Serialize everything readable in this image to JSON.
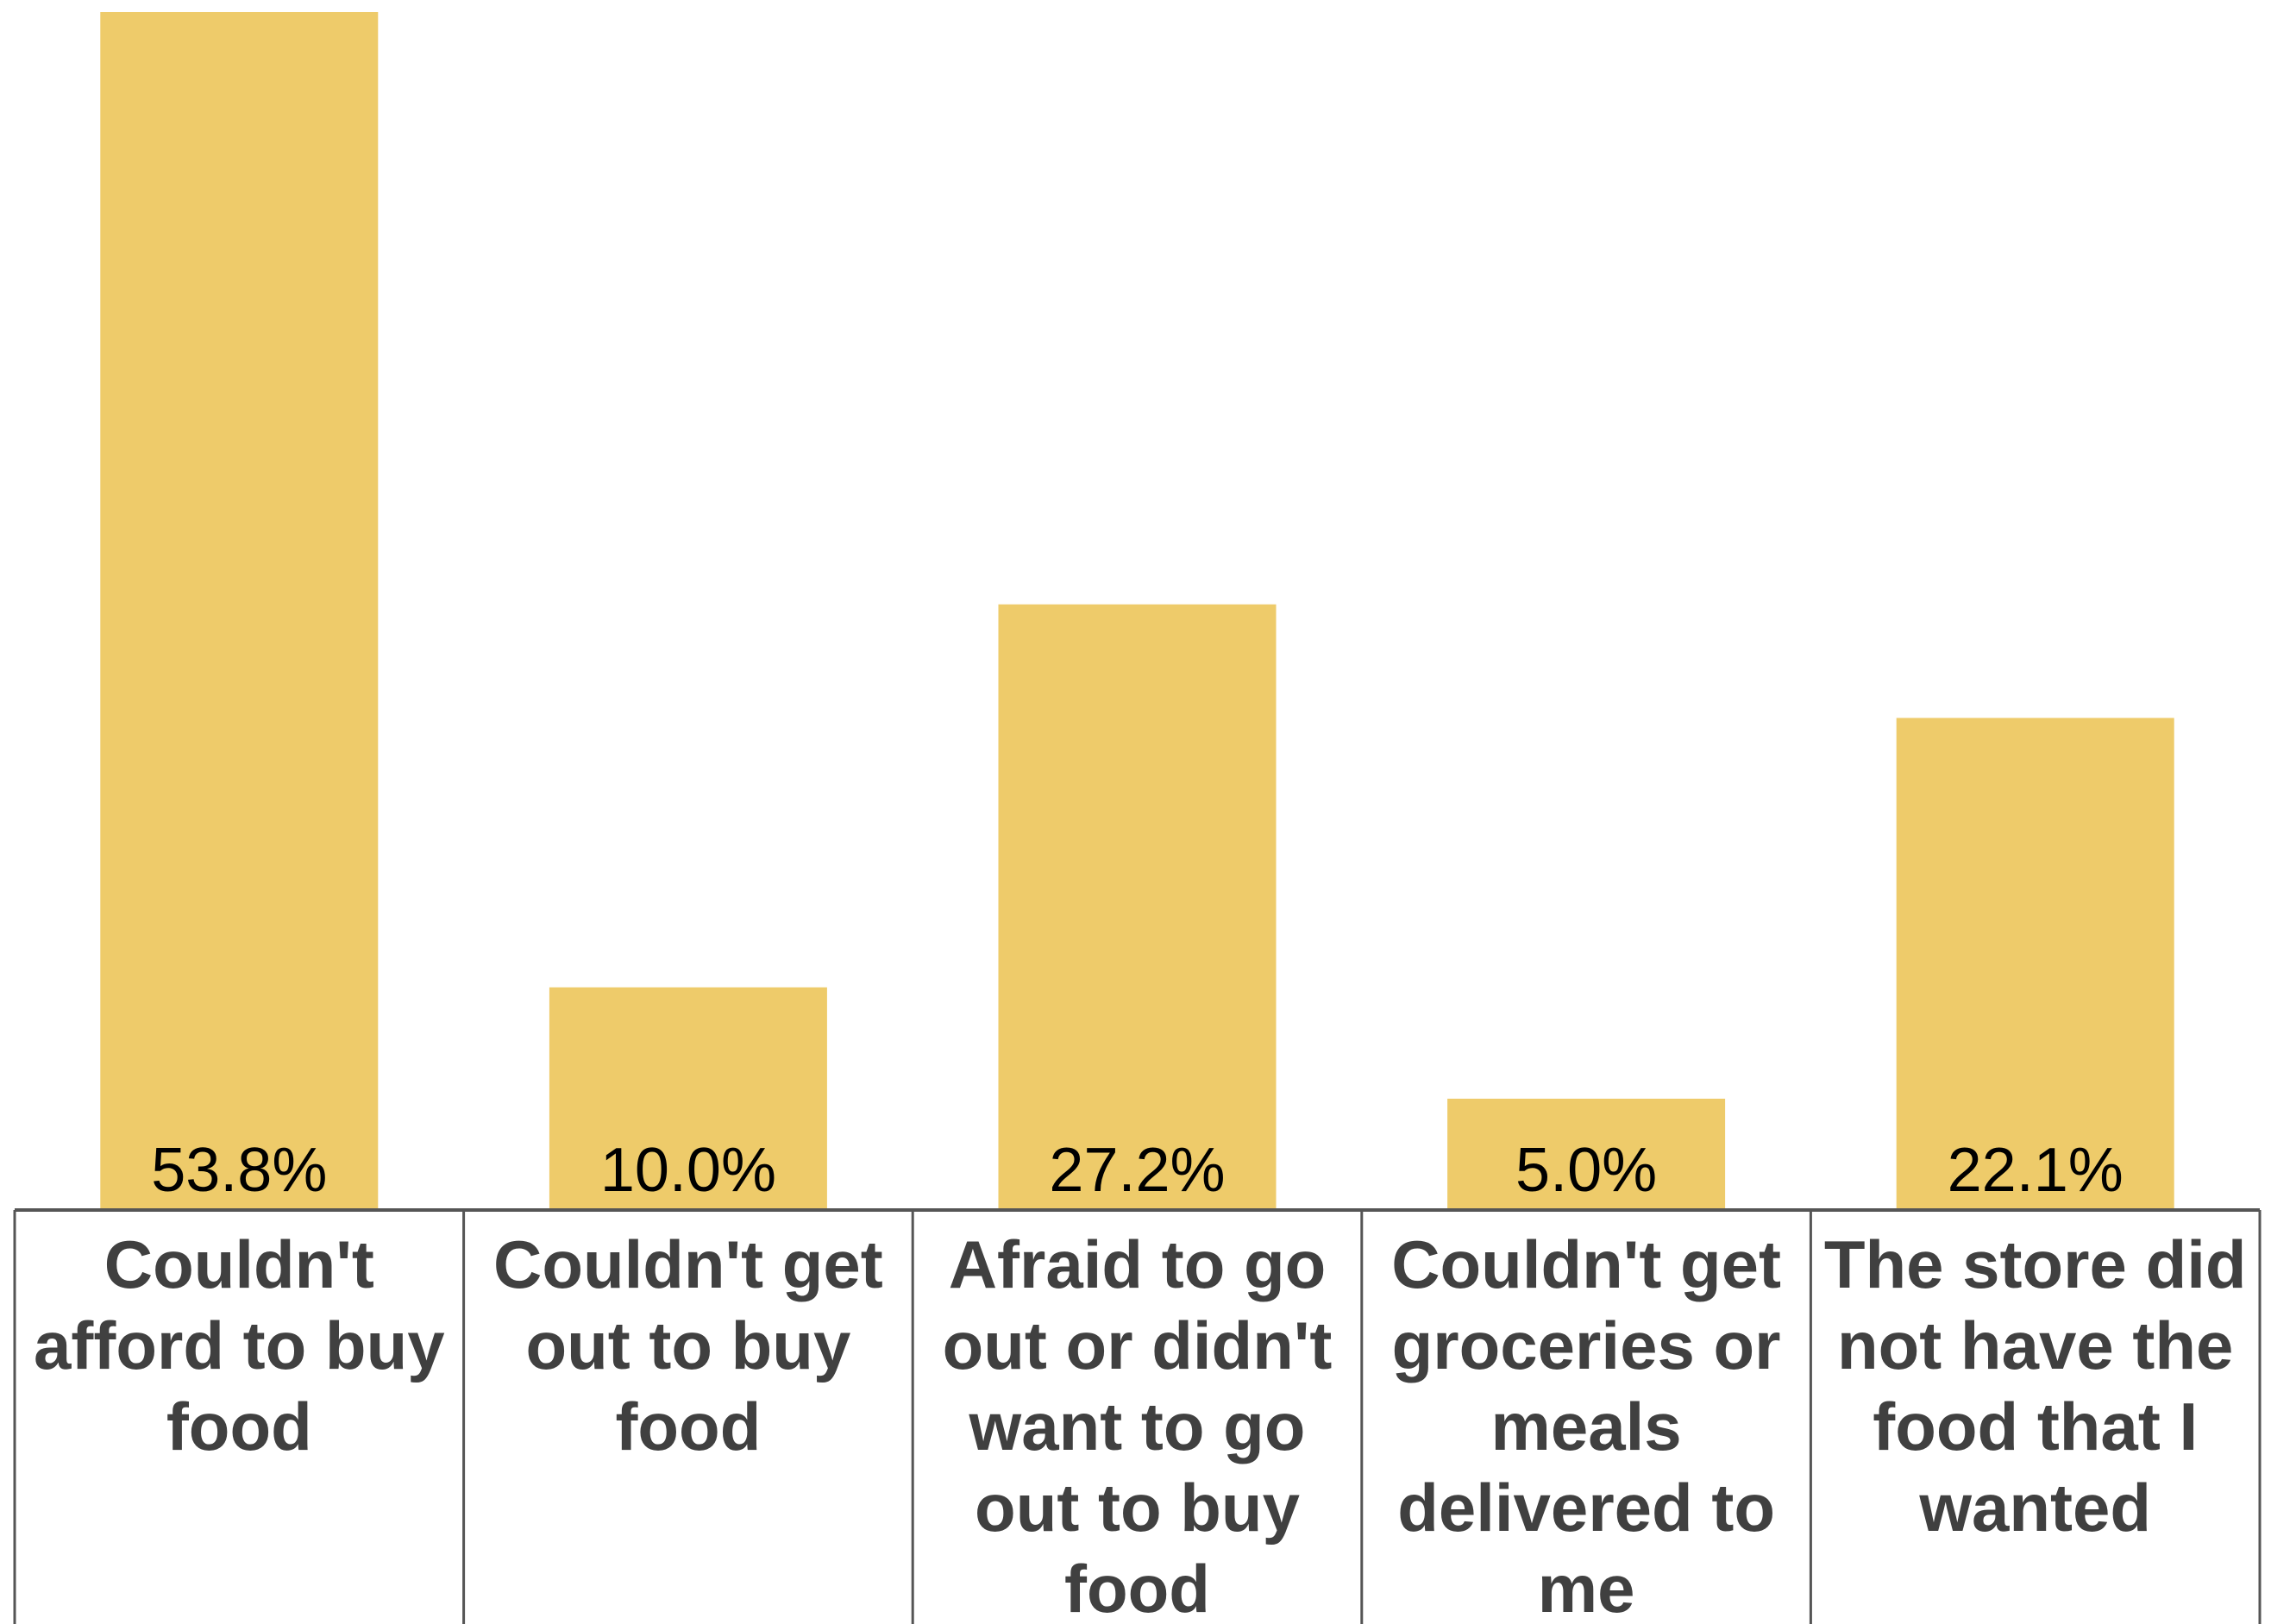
{
  "chart_data": {
    "type": "bar",
    "categories": [
      "Couldn't afford to buy food",
      "Couldn't get out to buy food",
      "Afraid to go out or didn't want to go out to buy food",
      "Couldn't get groceries or meals delivered to me",
      "The store did not have the food that I wanted"
    ],
    "category_lines": [
      [
        "Couldn't",
        "afford to buy",
        "food"
      ],
      [
        "Couldn't get",
        "out to buy",
        "food"
      ],
      [
        "Afraid to go",
        "out or didn't",
        "want to go",
        "out to buy",
        "food"
      ],
      [
        "Couldn't get",
        "groceries or",
        "meals",
        "delivered to",
        "me"
      ],
      [
        "The store did",
        "not have the",
        "food that I",
        "wanted"
      ]
    ],
    "values": [
      53.8,
      10.0,
      27.2,
      5.0,
      22.1
    ],
    "data_labels": [
      "53.8%",
      "10.0%",
      "27.2%",
      "5.0%",
      "22.1%"
    ],
    "title": "",
    "xlabel": "",
    "ylabel": "",
    "ylim": [
      0,
      53.8
    ],
    "grid": false,
    "legend": "none",
    "bar_color": "#EECB6A",
    "axis_color": "#555555",
    "label_color": "#404040"
  }
}
